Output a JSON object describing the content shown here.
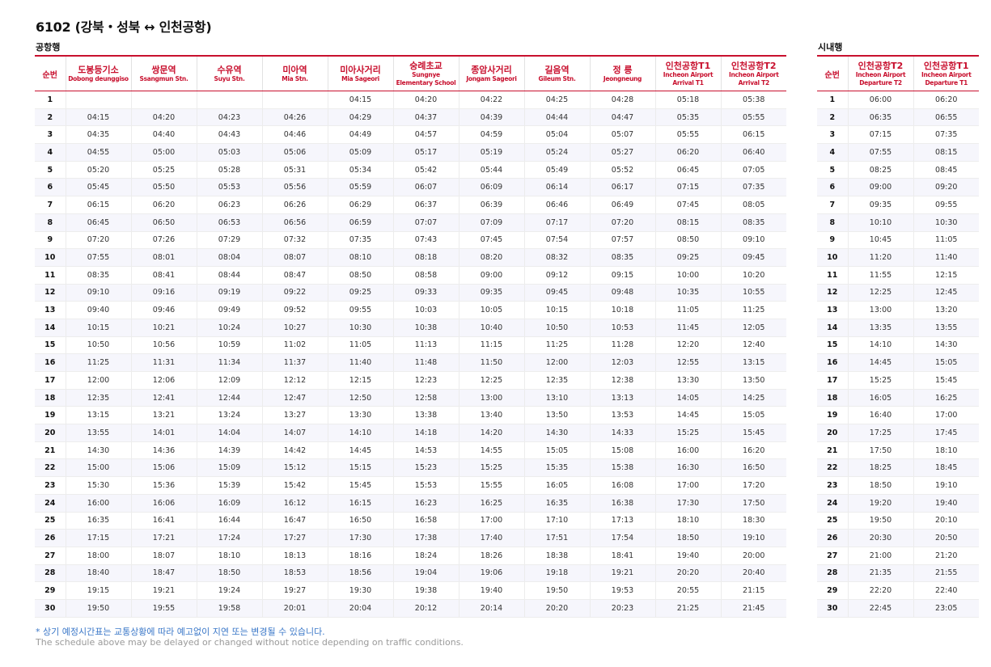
{
  "title": "6102 (강북・성북 ↔ 인천공항)",
  "airport": {
    "section_label": "공항행",
    "no_header": "순번",
    "stops": [
      {
        "ko": "도봉등기소",
        "en": "Dobong deunggiso"
      },
      {
        "ko": "쌍문역",
        "en": "Ssangmun Stn."
      },
      {
        "ko": "수유역",
        "en": "Suyu Stn."
      },
      {
        "ko": "미아역",
        "en": "Mia Stn."
      },
      {
        "ko": "미아사거리",
        "en": "Mia Sageori"
      },
      {
        "ko": "숭례초교",
        "en": "Sungnye Elementary School"
      },
      {
        "ko": "종암사거리",
        "en": "Jongam Sageori"
      },
      {
        "ko": "길음역",
        "en": "Gileum Stn."
      },
      {
        "ko": "정 릉",
        "en": "Jeongneung"
      },
      {
        "ko": "인천공항T1",
        "en": "Incheon Airport Arrival T1"
      },
      {
        "ko": "인천공항T2",
        "en": "Incheon Airport Arrival T2"
      }
    ],
    "rows": [
      [
        "1",
        "",
        "",
        "",
        "",
        "04:15",
        "04:20",
        "04:22",
        "04:25",
        "04:28",
        "05:18",
        "05:38"
      ],
      [
        "2",
        "04:15",
        "04:20",
        "04:23",
        "04:26",
        "04:29",
        "04:37",
        "04:39",
        "04:44",
        "04:47",
        "05:35",
        "05:55"
      ],
      [
        "3",
        "04:35",
        "04:40",
        "04:43",
        "04:46",
        "04:49",
        "04:57",
        "04:59",
        "05:04",
        "05:07",
        "05:55",
        "06:15"
      ],
      [
        "4",
        "04:55",
        "05:00",
        "05:03",
        "05:06",
        "05:09",
        "05:17",
        "05:19",
        "05:24",
        "05:27",
        "06:20",
        "06:40"
      ],
      [
        "5",
        "05:20",
        "05:25",
        "05:28",
        "05:31",
        "05:34",
        "05:42",
        "05:44",
        "05:49",
        "05:52",
        "06:45",
        "07:05"
      ],
      [
        "6",
        "05:45",
        "05:50",
        "05:53",
        "05:56",
        "05:59",
        "06:07",
        "06:09",
        "06:14",
        "06:17",
        "07:15",
        "07:35"
      ],
      [
        "7",
        "06:15",
        "06:20",
        "06:23",
        "06:26",
        "06:29",
        "06:37",
        "06:39",
        "06:46",
        "06:49",
        "07:45",
        "08:05"
      ],
      [
        "8",
        "06:45",
        "06:50",
        "06:53",
        "06:56",
        "06:59",
        "07:07",
        "07:09",
        "07:17",
        "07:20",
        "08:15",
        "08:35"
      ],
      [
        "9",
        "07:20",
        "07:26",
        "07:29",
        "07:32",
        "07:35",
        "07:43",
        "07:45",
        "07:54",
        "07:57",
        "08:50",
        "09:10"
      ],
      [
        "10",
        "07:55",
        "08:01",
        "08:04",
        "08:07",
        "08:10",
        "08:18",
        "08:20",
        "08:32",
        "08:35",
        "09:25",
        "09:45"
      ],
      [
        "11",
        "08:35",
        "08:41",
        "08:44",
        "08:47",
        "08:50",
        "08:58",
        "09:00",
        "09:12",
        "09:15",
        "10:00",
        "10:20"
      ],
      [
        "12",
        "09:10",
        "09:16",
        "09:19",
        "09:22",
        "09:25",
        "09:33",
        "09:35",
        "09:45",
        "09:48",
        "10:35",
        "10:55"
      ],
      [
        "13",
        "09:40",
        "09:46",
        "09:49",
        "09:52",
        "09:55",
        "10:03",
        "10:05",
        "10:15",
        "10:18",
        "11:05",
        "11:25"
      ],
      [
        "14",
        "10:15",
        "10:21",
        "10:24",
        "10:27",
        "10:30",
        "10:38",
        "10:40",
        "10:50",
        "10:53",
        "11:45",
        "12:05"
      ],
      [
        "15",
        "10:50",
        "10:56",
        "10:59",
        "11:02",
        "11:05",
        "11:13",
        "11:15",
        "11:25",
        "11:28",
        "12:20",
        "12:40"
      ],
      [
        "16",
        "11:25",
        "11:31",
        "11:34",
        "11:37",
        "11:40",
        "11:48",
        "11:50",
        "12:00",
        "12:03",
        "12:55",
        "13:15"
      ],
      [
        "17",
        "12:00",
        "12:06",
        "12:09",
        "12:12",
        "12:15",
        "12:23",
        "12:25",
        "12:35",
        "12:38",
        "13:30",
        "13:50"
      ],
      [
        "18",
        "12:35",
        "12:41",
        "12:44",
        "12:47",
        "12:50",
        "12:58",
        "13:00",
        "13:10",
        "13:13",
        "14:05",
        "14:25"
      ],
      [
        "19",
        "13:15",
        "13:21",
        "13:24",
        "13:27",
        "13:30",
        "13:38",
        "13:40",
        "13:50",
        "13:53",
        "14:45",
        "15:05"
      ],
      [
        "20",
        "13:55",
        "14:01",
        "14:04",
        "14:07",
        "14:10",
        "14:18",
        "14:20",
        "14:30",
        "14:33",
        "15:25",
        "15:45"
      ],
      [
        "21",
        "14:30",
        "14:36",
        "14:39",
        "14:42",
        "14:45",
        "14:53",
        "14:55",
        "15:05",
        "15:08",
        "16:00",
        "16:20"
      ],
      [
        "22",
        "15:00",
        "15:06",
        "15:09",
        "15:12",
        "15:15",
        "15:23",
        "15:25",
        "15:35",
        "15:38",
        "16:30",
        "16:50"
      ],
      [
        "23",
        "15:30",
        "15:36",
        "15:39",
        "15:42",
        "15:45",
        "15:53",
        "15:55",
        "16:05",
        "16:08",
        "17:00",
        "17:20"
      ],
      [
        "24",
        "16:00",
        "16:06",
        "16:09",
        "16:12",
        "16:15",
        "16:23",
        "16:25",
        "16:35",
        "16:38",
        "17:30",
        "17:50"
      ],
      [
        "25",
        "16:35",
        "16:41",
        "16:44",
        "16:47",
        "16:50",
        "16:58",
        "17:00",
        "17:10",
        "17:13",
        "18:10",
        "18:30"
      ],
      [
        "26",
        "17:15",
        "17:21",
        "17:24",
        "17:27",
        "17:30",
        "17:38",
        "17:40",
        "17:51",
        "17:54",
        "18:50",
        "19:10"
      ],
      [
        "27",
        "18:00",
        "18:07",
        "18:10",
        "18:13",
        "18:16",
        "18:24",
        "18:26",
        "18:38",
        "18:41",
        "19:40",
        "20:00"
      ],
      [
        "28",
        "18:40",
        "18:47",
        "18:50",
        "18:53",
        "18:56",
        "19:04",
        "19:06",
        "19:18",
        "19:21",
        "20:20",
        "20:40"
      ],
      [
        "29",
        "19:15",
        "19:21",
        "19:24",
        "19:27",
        "19:30",
        "19:38",
        "19:40",
        "19:50",
        "19:53",
        "20:55",
        "21:15"
      ],
      [
        "30",
        "19:50",
        "19:55",
        "19:58",
        "20:01",
        "20:04",
        "20:12",
        "20:14",
        "20:20",
        "20:23",
        "21:25",
        "21:45"
      ]
    ]
  },
  "city": {
    "section_label": "시내행",
    "no_header": "순번",
    "stops": [
      {
        "ko": "인천공항T2",
        "en": "Incheon Airport Departure T2"
      },
      {
        "ko": "인천공항T1",
        "en": "Incheon Airport Departure T1"
      }
    ],
    "rows": [
      [
        "1",
        "06:00",
        "06:20"
      ],
      [
        "2",
        "06:35",
        "06:55"
      ],
      [
        "3",
        "07:15",
        "07:35"
      ],
      [
        "4",
        "07:55",
        "08:15"
      ],
      [
        "5",
        "08:25",
        "08:45"
      ],
      [
        "6",
        "09:00",
        "09:20"
      ],
      [
        "7",
        "09:35",
        "09:55"
      ],
      [
        "8",
        "10:10",
        "10:30"
      ],
      [
        "9",
        "10:45",
        "11:05"
      ],
      [
        "10",
        "11:20",
        "11:40"
      ],
      [
        "11",
        "11:55",
        "12:15"
      ],
      [
        "12",
        "12:25",
        "12:45"
      ],
      [
        "13",
        "13:00",
        "13:20"
      ],
      [
        "14",
        "13:35",
        "13:55"
      ],
      [
        "15",
        "14:10",
        "14:30"
      ],
      [
        "16",
        "14:45",
        "15:05"
      ],
      [
        "17",
        "15:25",
        "15:45"
      ],
      [
        "18",
        "16:05",
        "16:25"
      ],
      [
        "19",
        "16:40",
        "17:00"
      ],
      [
        "20",
        "17:25",
        "17:45"
      ],
      [
        "21",
        "17:50",
        "18:10"
      ],
      [
        "22",
        "18:25",
        "18:45"
      ],
      [
        "23",
        "18:50",
        "19:10"
      ],
      [
        "24",
        "19:20",
        "19:40"
      ],
      [
        "25",
        "19:50",
        "20:10"
      ],
      [
        "26",
        "20:30",
        "20:50"
      ],
      [
        "27",
        "21:00",
        "21:20"
      ],
      [
        "28",
        "21:35",
        "21:55"
      ],
      [
        "29",
        "22:20",
        "22:40"
      ],
      [
        "30",
        "22:45",
        "23:05"
      ]
    ]
  },
  "notes": {
    "ko": "* 상기 예정시간표는 교통상황에 따라 예고없이 지연 또는 변경될 수 있습니다.",
    "en": "The schedule above may be delayed or changed without notice depending on traffic conditions."
  },
  "colors": {
    "accent": "#c8102e",
    "note_ko": "#3a77c8",
    "note_en": "#9a9a9a",
    "row_alt": "#f6f6fc"
  }
}
